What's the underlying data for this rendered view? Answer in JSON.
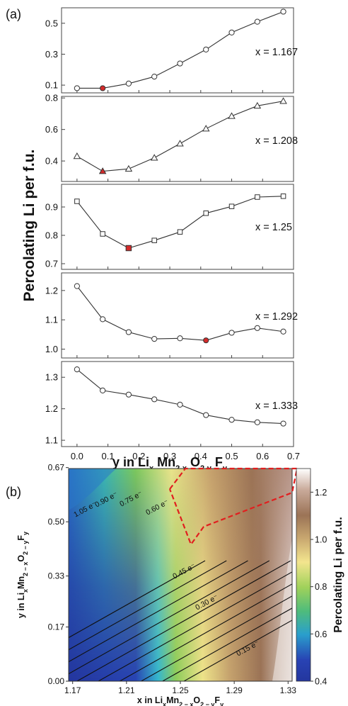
{
  "figure": {
    "panel_a_label": "(a)",
    "panel_b_label": "(b)"
  },
  "chart_data": [
    {
      "panel": "(a)",
      "type": "line",
      "ylabel": "Percolating Li per f.u.",
      "xlabel": "y in Li",
      "xlabel_parts": [
        "y in Li",
        "x",
        " Mn",
        "2-x",
        " O",
        "2-y",
        " F",
        "y"
      ],
      "x": [
        0.0,
        0.083,
        0.167,
        0.25,
        0.333,
        0.417,
        0.5,
        0.583,
        0.667
      ],
      "xlim": [
        -0.05,
        0.7
      ],
      "xticks": [
        "0.0",
        "0.1",
        "0.2",
        "0.3",
        "0.4",
        "0.5",
        "0.6",
        "0.7"
      ],
      "subplots": [
        {
          "annotation": "x = 1.167",
          "marker": "circle",
          "ylim": [
            0.05,
            0.6
          ],
          "yticks": [
            "0.1",
            "0.3",
            "0.5"
          ],
          "values": [
            0.08,
            0.08,
            0.11,
            0.155,
            0.24,
            0.33,
            0.44,
            0.51,
            0.575
          ],
          "highlight_index": 1
        },
        {
          "annotation": "x = 1.208",
          "marker": "triangle",
          "ylim": [
            0.27,
            0.81
          ],
          "yticks": [
            "0.4",
            "0.6",
            "0.8"
          ],
          "values": [
            0.43,
            0.335,
            0.35,
            0.42,
            0.51,
            0.605,
            0.685,
            0.75,
            0.78
          ],
          "highlight_index": 1
        },
        {
          "annotation": "x = 1.25",
          "marker": "square",
          "ylim": [
            0.68,
            0.98
          ],
          "yticks": [
            "0.7",
            "0.8",
            "0.9"
          ],
          "values": [
            0.92,
            0.805,
            0.755,
            0.782,
            0.812,
            0.878,
            0.902,
            0.935,
            0.938
          ],
          "highlight_index": 2
        },
        {
          "annotation": "x = 1.292",
          "marker": "circle",
          "ylim": [
            0.97,
            1.26
          ],
          "yticks": [
            "1.0",
            "1.1",
            "1.2"
          ],
          "values": [
            1.215,
            1.102,
            1.058,
            1.035,
            1.037,
            1.03,
            1.056,
            1.072,
            1.06
          ],
          "highlight_index": 5
        },
        {
          "annotation": "x = 1.333",
          "marker": "circle",
          "ylim": [
            1.08,
            1.35
          ],
          "yticks": [
            "1.1",
            "1.2",
            "1.3"
          ],
          "values": [
            1.325,
            1.258,
            1.245,
            1.23,
            1.213,
            1.18,
            1.165,
            1.157,
            1.153
          ],
          "highlight_index": null
        }
      ]
    },
    {
      "panel": "(b)",
      "type": "heatmap",
      "xlabel": "x in Li",
      "xlabel_parts": [
        "x in Li",
        "x",
        "Mn",
        "2 − x",
        "O",
        "2 − y",
        "F",
        "y"
      ],
      "ylabel": "y in Li",
      "ylabel_parts": [
        "y in Li",
        "x",
        "Mn",
        "2 − x",
        "O",
        "2 − y",
        "F",
        "y"
      ],
      "xlim": [
        1.167,
        1.333
      ],
      "ylim": [
        0.0,
        0.667
      ],
      "xticks": [
        "1.17",
        "1.21",
        "1.25",
        "1.29",
        "1.33"
      ],
      "yticks": [
        "0.00",
        "0.17",
        "0.33",
        "0.50",
        "0.67"
      ],
      "colorbar": {
        "label": "Percolating Li per f.u.",
        "range": [
          0.4,
          1.3
        ],
        "ticks": [
          "0.4",
          "0.6",
          "0.8",
          "1.0",
          "1.2"
        ]
      },
      "contour_labels": [
        "1.05 e⁻",
        "0.90 e⁻",
        "0.75 e⁻",
        "0.60 e⁻",
        "0.45 e⁻",
        "0.30 e⁻",
        "0.15 e⁻"
      ],
      "region_outline": "dashed",
      "colors": {
        "low": "#24369e",
        "mid_low": "#2a9fcc",
        "mid": "#5dbf5b",
        "mid_high": "#f3e58e",
        "high": "#9b7356",
        "max": "#ffffff",
        "highlight": "#e11f1f",
        "marker_highlight": "#d42a2a"
      }
    }
  ]
}
